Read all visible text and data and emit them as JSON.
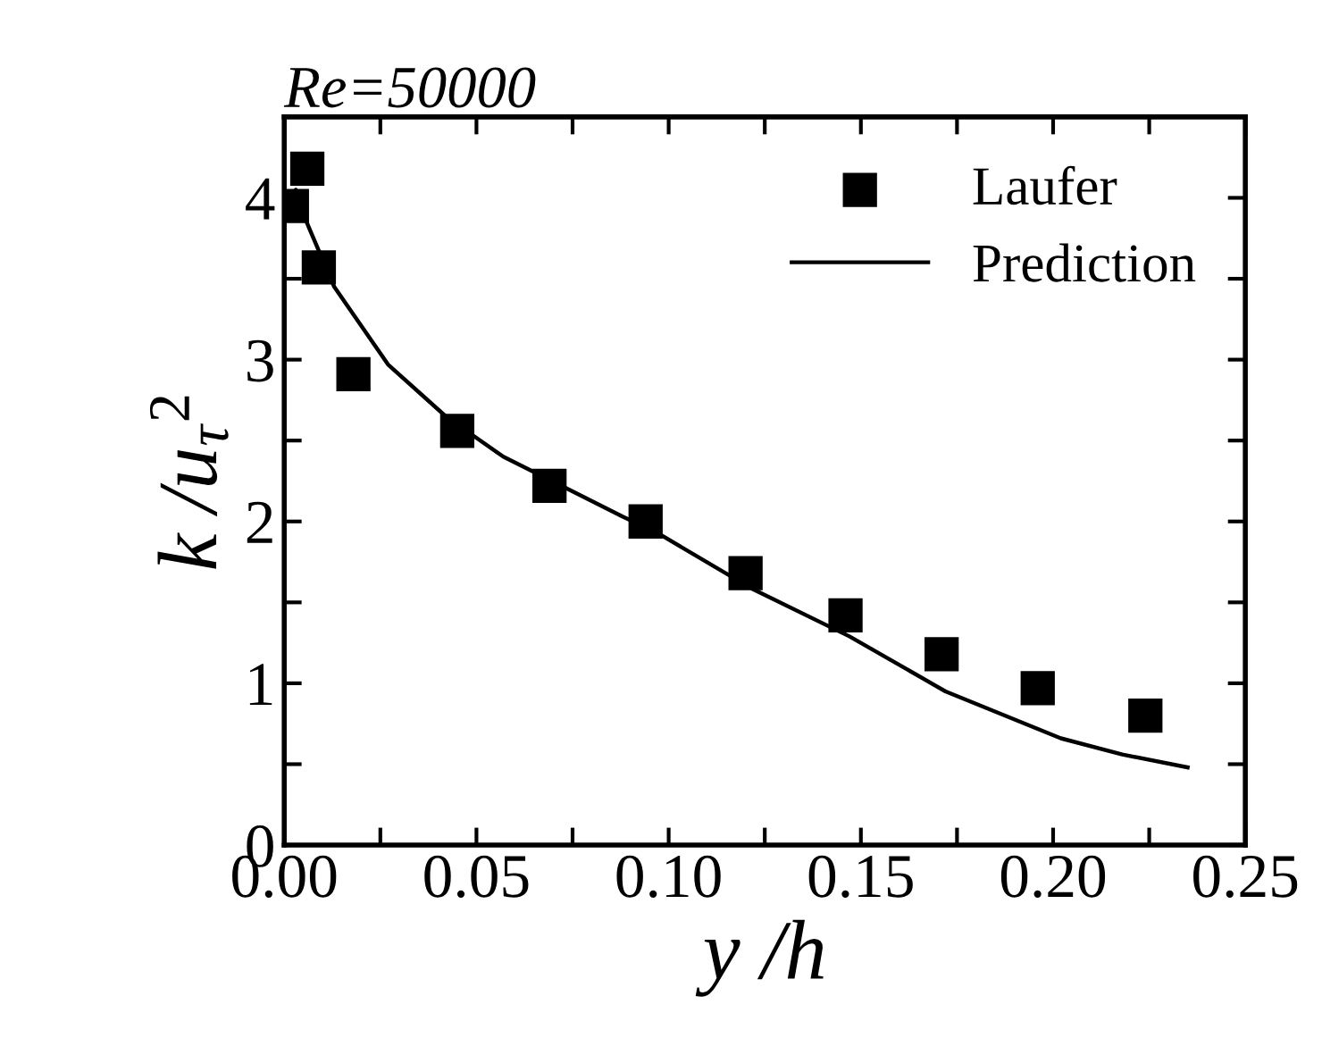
{
  "chart_data": {
    "type": "scatter",
    "title": "Re=50000",
    "xlabel": "y /h",
    "ylabel": "k /u$_{τ}$$^{2}$",
    "series": [
      {
        "name": "Laufer",
        "color": "#000000",
        "marker": "square",
        "x": [
          0.002,
          0.006,
          0.009,
          0.018,
          0.045,
          0.069,
          0.094,
          0.12,
          0.146,
          0.171,
          0.196,
          0.224
        ],
        "values": [
          3.95,
          4.18,
          3.57,
          2.91,
          2.56,
          2.22,
          2.0,
          1.68,
          1.42,
          1.18,
          0.97,
          0.8
        ]
      },
      {
        "name": "Prediction",
        "type": "line",
        "color": "#000000",
        "line_style": "solid",
        "x": [
          0.001,
          0.003,
          0.006,
          0.013,
          0.027,
          0.042,
          0.057,
          0.073,
          0.088,
          0.097,
          0.122,
          0.147,
          0.172,
          0.202,
          0.218,
          0.235
        ],
        "values": [
          3.9,
          4.05,
          3.84,
          3.45,
          2.97,
          2.65,
          2.4,
          2.21,
          2.03,
          1.93,
          1.58,
          1.29,
          0.95,
          0.66,
          0.56,
          0.48
        ]
      }
    ],
    "xlim": [
      0,
      0.25
    ],
    "ylim": [
      0,
      4.5
    ],
    "xticks": [
      {
        "value": 0,
        "label": "0.00"
      },
      {
        "value": 0.025,
        "label": null
      },
      {
        "value": 0.05,
        "label": "0.05"
      },
      {
        "value": 0.075,
        "label": null
      },
      {
        "value": 0.1,
        "label": "0.10"
      },
      {
        "value": 0.125,
        "label": null
      },
      {
        "value": 0.15,
        "label": "0.15"
      },
      {
        "value": 0.175,
        "label": null
      },
      {
        "value": 0.2,
        "label": "0.20"
      },
      {
        "value": 0.225,
        "label": null
      },
      {
        "value": 0.25,
        "label": "0.25"
      }
    ],
    "yticks": [
      0,
      {
        "value": 0.5,
        "label": null
      },
      1,
      {
        "value": 1.5,
        "label": null
      },
      2,
      {
        "value": 2.5,
        "label": null
      },
      3,
      {
        "value": 3.5,
        "label": null
      },
      4
    ],
    "grid": false,
    "legend": "top right"
  }
}
